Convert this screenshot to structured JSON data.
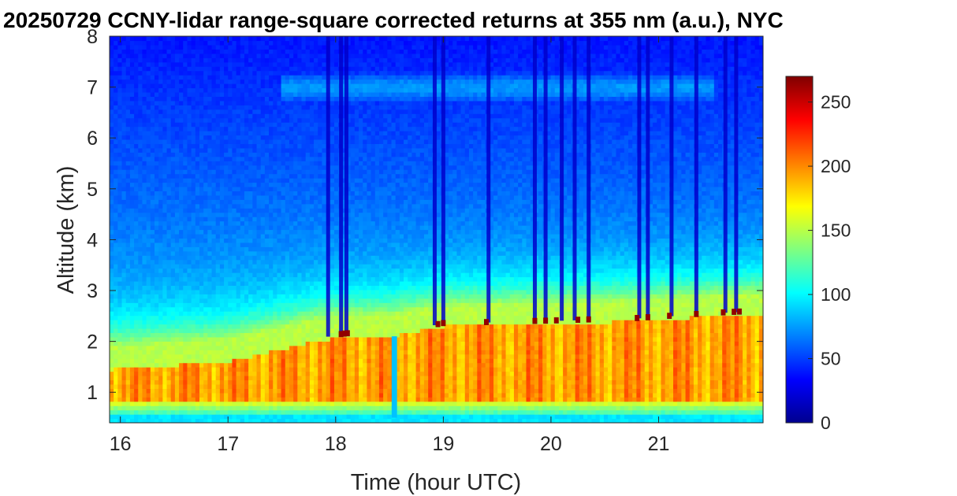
{
  "chart_data": {
    "type": "heatmap",
    "title": "20250729 CCNY-lidar range-square corrected returns at 355 nm (a.u.), NYC",
    "xlabel": "Time (hour UTC)",
    "ylabel": "Altitude (km)",
    "xlim": [
      15.9,
      21.97
    ],
    "ylim": [
      0.4,
      8.0
    ],
    "x_ticks": [
      16,
      17,
      18,
      19,
      20,
      21
    ],
    "x_tick_labels": [
      "16",
      "17",
      "18",
      "19",
      "20",
      "21"
    ],
    "y_ticks": [
      1,
      2,
      3,
      4,
      5,
      6,
      7,
      8
    ],
    "y_tick_labels": [
      "1",
      "2",
      "3",
      "4",
      "5",
      "6",
      "7",
      "8"
    ],
    "colorbar": {
      "colormap": "jet",
      "range": [
        0,
        270
      ],
      "ticks": [
        0,
        50,
        100,
        150,
        200,
        250
      ],
      "tick_labels": [
        "0",
        "50",
        "100",
        "150",
        "200",
        "250"
      ]
    },
    "approx_features": {
      "aerosol_layer_top_km": [
        {
          "x": 15.9,
          "top": 1.45
        },
        {
          "x": 17.0,
          "top": 1.6
        },
        {
          "x": 17.8,
          "top": 2.0
        },
        {
          "x": 18.1,
          "top": 2.1
        },
        {
          "x": 18.5,
          "top": 2.1
        },
        {
          "x": 19.0,
          "top": 2.3
        },
        {
          "x": 20.0,
          "top": 2.35
        },
        {
          "x": 20.8,
          "top": 2.4
        },
        {
          "x": 21.5,
          "top": 2.5
        },
        {
          "x": 21.97,
          "top": 2.55
        }
      ],
      "cloud_layer_km": [
        6.7,
        7.3
      ],
      "cloud_layer_time_hours": [
        17.5,
        21.5
      ],
      "saturated_cloud_base_times": [
        18.05,
        18.08,
        18.11,
        18.95,
        19.0,
        19.4,
        19.85,
        19.95,
        20.05,
        20.25,
        20.35,
        20.8,
        20.9,
        21.1,
        21.35,
        21.6,
        21.7,
        21.75
      ],
      "attenuated_columns_times": [
        17.93,
        18.05,
        18.1,
        18.92,
        19.0,
        19.42,
        19.85,
        19.95,
        20.1,
        20.22,
        20.35,
        20.82,
        20.9,
        21.12,
        21.35,
        21.62,
        21.72
      ],
      "gap_time_hours": [
        18.52,
        18.57
      ]
    }
  }
}
